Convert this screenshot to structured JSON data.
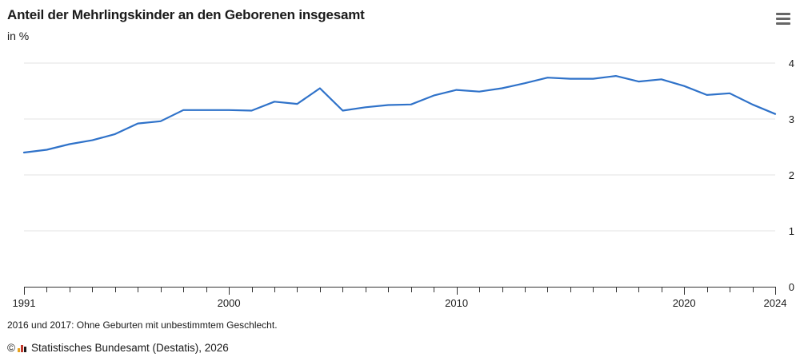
{
  "header": {
    "title": "Anteil der Mehrlingskinder an den Geborenen insgesamt",
    "unit": "in %",
    "menu_icon": "hamburger-menu-icon"
  },
  "chart_data": {
    "type": "line",
    "title": "Anteil der Mehrlingskinder an den Geborenen insgesamt",
    "ylabel": "in %",
    "xlabel": "",
    "x": [
      1991,
      1992,
      1993,
      1994,
      1995,
      1996,
      1997,
      1998,
      1999,
      2000,
      2001,
      2002,
      2003,
      2004,
      2005,
      2006,
      2007,
      2008,
      2009,
      2010,
      2011,
      2012,
      2013,
      2014,
      2015,
      2016,
      2017,
      2018,
      2019,
      2020,
      2021,
      2022,
      2023,
      2024
    ],
    "series": [
      {
        "values": [
          2.4,
          2.45,
          2.55,
          2.62,
          2.73,
          2.92,
          2.96,
          3.16,
          3.16,
          3.16,
          3.15,
          3.31,
          3.27,
          3.55,
          3.15,
          3.21,
          3.25,
          3.26,
          3.42,
          3.52,
          3.49,
          3.55,
          3.64,
          3.74,
          3.72,
          3.72,
          3.77,
          3.67,
          3.71,
          3.59,
          3.43,
          3.46,
          3.26,
          3.09
        ],
        "color": "#2f72c9"
      }
    ],
    "xlim": [
      1991,
      2024
    ],
    "ylim": [
      0,
      4
    ],
    "yticks": [
      "0",
      "1",
      "2",
      "3",
      "4"
    ],
    "xtick_labels": [
      "1991",
      "2000",
      "2010",
      "2020",
      "2024"
    ],
    "y_axis_position": "right",
    "grid": true
  },
  "footer": {
    "footnote": "2016 und 2017: Ohne Geburten mit unbestimmtem Geschlecht.",
    "copyright_symbol": "©",
    "source": "Statistisches Bundesamt (Destatis), 2026"
  }
}
